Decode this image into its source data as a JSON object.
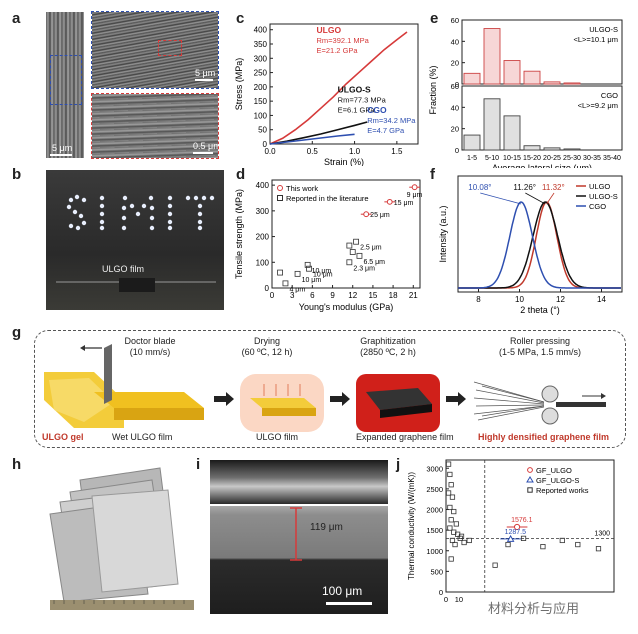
{
  "panels": {
    "a": {
      "label": "a",
      "scale1": "5 μm",
      "scale2": "5 μm",
      "scale3": "0.5 μm"
    },
    "b": {
      "label": "b",
      "film_label": "ULGO film"
    },
    "c": {
      "label": "c"
    },
    "d": {
      "label": "d"
    },
    "e": {
      "label": "e"
    },
    "f": {
      "label": "f"
    },
    "g": {
      "label": "g",
      "steps": [
        {
          "title": "Doctor blade",
          "detail": "(10 mm/s)"
        },
        {
          "title": "Drying",
          "detail": "(60 ºC, 12 h)"
        },
        {
          "title": "Graphitization",
          "detail": "(2850 ºC, 2 h)"
        },
        {
          "title": "Roller pressing",
          "detail": "(1-5 MPa, 1.5 mm/s)"
        }
      ],
      "captions": {
        "gel": "ULGO gel",
        "wet": "Wet ULGO film",
        "dry": "ULGO film",
        "expanded": "Expanded graphene film",
        "dense": "Highly densified graphene film"
      }
    },
    "h": {
      "label": "h"
    },
    "i": {
      "label": "i",
      "thickness": "119 μm",
      "scale": "100 μm"
    },
    "j": {
      "label": "j"
    }
  },
  "watermark": "材料分析与应用",
  "chart_data": [
    {
      "id": "c",
      "type": "line",
      "title": "",
      "xlabel": "Strain (%)",
      "ylabel": "Stress (MPa)",
      "xlim": [
        0,
        1.75
      ],
      "ylim": [
        0,
        420
      ],
      "xticks": [
        "0.0",
        "0.5",
        "1.0",
        "1.5"
      ],
      "yticks": [
        "0",
        "50",
        "100",
        "150",
        "200",
        "250",
        "300",
        "350",
        "400"
      ],
      "series": [
        {
          "name": "ULGO",
          "color": "#d63a3a",
          "annotation": [
            "ULGO",
            "Rm=392.1 MPa",
            "E=21.2 GPa"
          ],
          "x": [
            0,
            0.15,
            0.3,
            0.45,
            0.6,
            0.75,
            0.9,
            1.05,
            1.2,
            1.35,
            1.5,
            1.62
          ],
          "y": [
            0,
            20,
            50,
            85,
            125,
            165,
            210,
            250,
            290,
            330,
            365,
            392
          ]
        },
        {
          "name": "ULGO-S",
          "color": "#111111",
          "annotation": [
            "ULGO-S",
            "Rm=77.3 MPa",
            "E=6.1 GPa"
          ],
          "x": [
            0,
            0.2,
            0.4,
            0.6,
            0.8,
            1.0,
            1.15
          ],
          "y": [
            0,
            10,
            22,
            35,
            50,
            65,
            77
          ]
        },
        {
          "name": "CGO",
          "color": "#2e4fb0",
          "annotation": [
            "CGO",
            "Rm=34.2 MPa",
            "E=4.7 GPa"
          ],
          "x": [
            0,
            0.2,
            0.4,
            0.6,
            0.8,
            1.0
          ],
          "y": [
            0,
            7,
            14,
            21,
            28,
            34
          ]
        }
      ]
    },
    {
      "id": "d",
      "type": "scatter",
      "xlabel": "Young's modulus (GPa)",
      "ylabel": "Tensile strength (MPa)",
      "xlim": [
        0,
        22
      ],
      "ylim": [
        0,
        420
      ],
      "xticks": [
        "0",
        "3",
        "6",
        "9",
        "12",
        "15",
        "18",
        "21"
      ],
      "yticks": [
        "0",
        "100",
        "200",
        "300",
        "400"
      ],
      "legend": [
        "This work",
        "Reported in the literature"
      ],
      "this_work": [
        {
          "x": 21.2,
          "y": 392,
          "err": 0.8,
          "label": "9 μm"
        },
        {
          "x": 17.5,
          "y": 335,
          "err": 0.8,
          "label": "15 μm"
        },
        {
          "x": 14.0,
          "y": 287,
          "err": 0.8,
          "label": "25 μm"
        }
      ],
      "literature": [
        {
          "x": 2.0,
          "y": 18,
          "label": "4 μm"
        },
        {
          "x": 3.8,
          "y": 55,
          "label": "10 μm"
        },
        {
          "x": 5.5,
          "y": 75,
          "label": "10 μm"
        },
        {
          "x": 5.3,
          "y": 90,
          "label": "10 μm"
        },
        {
          "x": 11.5,
          "y": 100,
          "label": "2.3 μm"
        },
        {
          "x": 12.0,
          "y": 140,
          "label": ""
        },
        {
          "x": 13.0,
          "y": 125,
          "label": "6.5 μm"
        },
        {
          "x": 12.5,
          "y": 180,
          "label": "2.5 μm"
        },
        {
          "x": 11.5,
          "y": 165,
          "label": ""
        },
        {
          "x": 1.2,
          "y": 60,
          "label": ""
        }
      ]
    },
    {
      "id": "e",
      "type": "bar",
      "xlabel": "Average lateral size (μm)",
      "ylabel": "Fraction (%)",
      "categories": [
        "1-5",
        "5-10",
        "10-15",
        "15-20",
        "20-25",
        "25-30",
        "30-35",
        "35-40"
      ],
      "series": [
        {
          "name": "ULGO-S",
          "note": "<L>=10.1 μm",
          "color": "#f7d6d6",
          "edge": "#cc4444",
          "values": [
            10,
            52,
            22,
            12,
            2,
            1,
            0,
            0
          ]
        },
        {
          "name": "CGO",
          "note": "<L>=9.2 μm",
          "color": "#e0e0e0",
          "edge": "#444444",
          "values": [
            14,
            48,
            32,
            4,
            2,
            1,
            0,
            0
          ]
        }
      ],
      "ylim": [
        0,
        60
      ],
      "yticks": [
        "0",
        "20",
        "40",
        "60"
      ]
    },
    {
      "id": "f",
      "type": "line",
      "xlabel": "2 theta (°)",
      "ylabel": "Intensity (a.u.)",
      "xlim": [
        7,
        15
      ],
      "xticks": [
        "8",
        "10",
        "12",
        "14"
      ],
      "legend": [
        "ULGO",
        "ULGO-S",
        "CGO"
      ],
      "peaks": [
        {
          "name": "ULGO",
          "color": "#c0392b",
          "center": 11.32,
          "label": "11.32°"
        },
        {
          "name": "ULGO-S",
          "color": "#111111",
          "center": 11.26,
          "label": "11.26°"
        },
        {
          "name": "CGO",
          "color": "#2e4fb0",
          "center": 10.08,
          "label": "10.08°"
        }
      ]
    },
    {
      "id": "j",
      "type": "scatter",
      "xlabel": "",
      "ylabel": "Thermal conductivity (W/(mK))",
      "ylim": [
        0,
        3200
      ],
      "yticks": [
        "0",
        "500",
        "1000",
        "1500",
        "2000",
        "2500",
        "3000"
      ],
      "xlim": [
        0,
        130
      ],
      "xticks": [
        "0",
        "10"
      ],
      "legend": [
        "GF_ULGO",
        "GF_ULGO-S",
        "Reported works"
      ],
      "reference_line": {
        "y": 1300,
        "label": "1300"
      },
      "highlight": [
        {
          "name": "GF_ULGO",
          "x": 55,
          "y": 1576,
          "label": "1576.1",
          "color": "#d63a3a"
        },
        {
          "name": "GF_ULGO-S",
          "x": 50,
          "y": 1287,
          "label": "1287.5",
          "color": "#2e4fb0"
        }
      ],
      "reported": [
        {
          "x": 2,
          "y": 3100
        },
        {
          "x": 3,
          "y": 2850
        },
        {
          "x": 4,
          "y": 2600
        },
        {
          "x": 2,
          "y": 2400
        },
        {
          "x": 5,
          "y": 2300
        },
        {
          "x": 3,
          "y": 2050
        },
        {
          "x": 6,
          "y": 1950
        },
        {
          "x": 4,
          "y": 1750
        },
        {
          "x": 8,
          "y": 1650
        },
        {
          "x": 3,
          "y": 1550
        },
        {
          "x": 6,
          "y": 1450
        },
        {
          "x": 9,
          "y": 1400
        },
        {
          "x": 11,
          "y": 1300
        },
        {
          "x": 5,
          "y": 1250
        },
        {
          "x": 12,
          "y": 1350
        },
        {
          "x": 7,
          "y": 1150
        },
        {
          "x": 14,
          "y": 1200
        },
        {
          "x": 4,
          "y": 800
        },
        {
          "x": 18,
          "y": 1250
        },
        {
          "x": 38,
          "y": 650
        },
        {
          "x": 48,
          "y": 1150
        },
        {
          "x": 60,
          "y": 1300
        },
        {
          "x": 75,
          "y": 1100
        },
        {
          "x": 90,
          "y": 1250
        },
        {
          "x": 102,
          "y": 1150
        },
        {
          "x": 118,
          "y": 1050
        }
      ]
    }
  ]
}
